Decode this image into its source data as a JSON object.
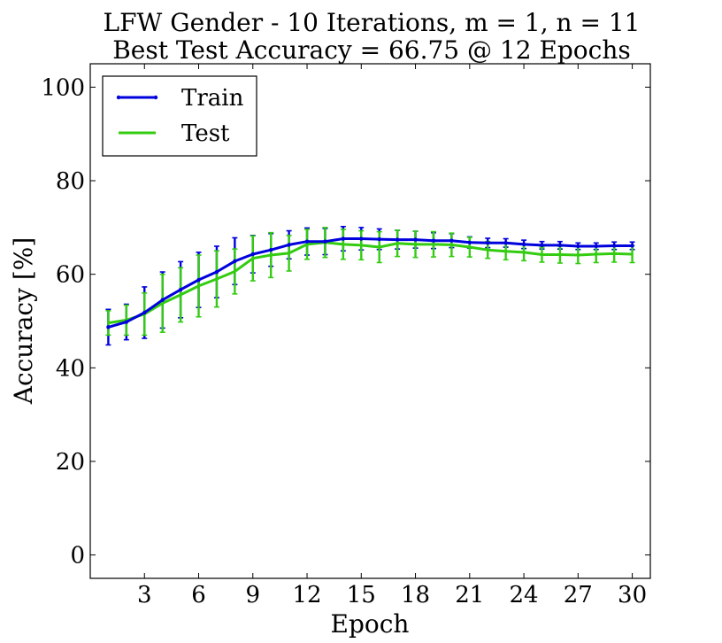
{
  "chart_data": {
    "type": "line",
    "title": "LFW Gender - 10 Iterations, m = 1, n = 11",
    "subtitle": "Best Test Accuracy = 66.75 @ 12 Epochs",
    "xlabel": "Epoch",
    "ylabel": "Accuracy [%]",
    "xlim": [
      0,
      31
    ],
    "ylim": [
      -5,
      105
    ],
    "xticks": [
      3,
      6,
      9,
      12,
      15,
      18,
      21,
      24,
      27,
      30
    ],
    "yticks": [
      0,
      20,
      40,
      60,
      80,
      100
    ],
    "xtick_labels": [
      "3",
      "6",
      "9",
      "12",
      "15",
      "18",
      "21",
      "24",
      "27",
      "30"
    ],
    "ytick_labels": [
      "0",
      "20",
      "40",
      "60",
      "80",
      "100"
    ],
    "grid": false,
    "legend_position": "top-left",
    "x": [
      1,
      2,
      3,
      4,
      5,
      6,
      7,
      8,
      9,
      10,
      11,
      12,
      13,
      14,
      15,
      16,
      17,
      18,
      19,
      20,
      21,
      22,
      23,
      24,
      25,
      26,
      27,
      28,
      29,
      30
    ],
    "series": [
      {
        "name": "Train",
        "color": "#0000dd",
        "marker": "point",
        "values": [
          48.7,
          49.8,
          51.8,
          54.5,
          56.7,
          58.8,
          60.5,
          62.8,
          64.3,
          65.2,
          66.3,
          67.0,
          67.0,
          67.6,
          67.6,
          67.5,
          67.4,
          67.4,
          67.2,
          67.2,
          66.8,
          66.7,
          66.7,
          66.4,
          66.2,
          66.2,
          66.0,
          66.0,
          66.1,
          66.1
        ],
        "errors": [
          3.8,
          3.8,
          5.5,
          6.0,
          6.0,
          5.9,
          5.5,
          5.0,
          4.0,
          3.5,
          3.0,
          2.9,
          2.8,
          2.6,
          2.4,
          2.2,
          2.0,
          1.8,
          1.7,
          1.5,
          1.2,
          1.0,
          0.9,
          0.9,
          0.8,
          0.8,
          0.7,
          0.7,
          0.8,
          0.8
        ]
      },
      {
        "name": "Test",
        "color": "#33cc11",
        "marker": "none",
        "values": [
          49.6,
          50.2,
          51.5,
          53.8,
          55.6,
          57.5,
          59.0,
          60.6,
          63.4,
          64.1,
          64.5,
          66.4,
          66.8,
          66.4,
          66.2,
          65.8,
          66.6,
          66.4,
          66.4,
          66.3,
          65.8,
          65.2,
          64.9,
          64.7,
          64.2,
          64.2,
          64.1,
          64.3,
          64.4,
          64.3
        ]
      }
    ],
    "test_errors": [
      2.6,
      3.2,
      4.5,
      6.2,
      5.8,
      6.6,
      6.0,
      4.8,
      4.8,
      4.8,
      3.8,
      3.2,
      3.2,
      3.2,
      3.1,
      3.3,
      2.8,
      2.8,
      2.7,
      2.5,
      2.1,
      1.8,
      1.8,
      1.8,
      1.6,
      1.8,
      1.8,
      1.8,
      1.8,
      1.8
    ]
  }
}
